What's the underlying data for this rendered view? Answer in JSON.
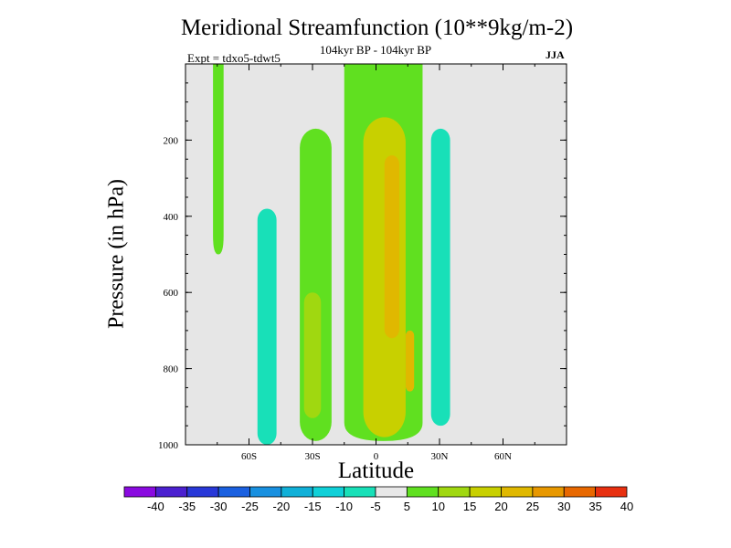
{
  "chart_data": {
    "type": "contour",
    "title": "Meridional Streamfunction (10**9kg/m-2)",
    "subtitle": "104kyr BP - 104kyr BP",
    "experiment": "Expt = tdxo5-tdwt5",
    "season": "JJA",
    "xlabel": "Latitude",
    "ylabel": "Pressure (in hPa)",
    "xlim": [
      -90,
      90
    ],
    "ylim": [
      1000,
      0
    ],
    "x_ticks": [
      {
        "value": -60,
        "label": "60S"
      },
      {
        "value": -30,
        "label": "30S"
      },
      {
        "value": 0,
        "label": "0"
      },
      {
        "value": 30,
        "label": "30N"
      },
      {
        "value": 60,
        "label": "60N"
      }
    ],
    "y_ticks": [
      {
        "value": 200,
        "label": "200"
      },
      {
        "value": 400,
        "label": "400"
      },
      {
        "value": 600,
        "label": "600"
      },
      {
        "value": 800,
        "label": "800"
      },
      {
        "value": 1000,
        "label": "1000"
      }
    ],
    "background_color": "#e6e6e6",
    "colorbar": {
      "labels": [
        "-40",
        "-35",
        "-30",
        "-25",
        "-20",
        "-15",
        "-10",
        "-5",
        "5",
        "10",
        "15",
        "20",
        "25",
        "30",
        "35",
        "40"
      ],
      "colors": [
        "#8a0ae0",
        "#4b20d0",
        "#2838d8",
        "#1a60e0",
        "#1890e0",
        "#10b0d8",
        "#10d0d8",
        "#18e0b8",
        "#e8e8e8",
        "#60e020",
        "#a0d810",
        "#c8d000",
        "#e0b800",
        "#e89800",
        "#e86800",
        "#e83010"
      ]
    },
    "regions": [
      {
        "name": "nh-upper-level-cell",
        "level": "5",
        "color": "#60e020",
        "pressure_range": [
          0,
          500
        ],
        "lat_range": [
          -77,
          -72
        ]
      },
      {
        "name": "sh-mid-latitude-negative-cell",
        "level": "-5",
        "color": "#18e0b8",
        "pressure_range": [
          380,
          1000
        ],
        "lat_range": [
          -56,
          -47
        ]
      },
      {
        "name": "sh-subtropical-positive-cell",
        "level": "5",
        "color": "#60e020",
        "pressure_range": [
          170,
          990
        ],
        "lat_range": [
          -36,
          -21
        ]
      },
      {
        "name": "sh-subtropical-core",
        "level": "10",
        "color": "#a0d810",
        "pressure_range": [
          600,
          930
        ],
        "lat_range": [
          -34,
          -26
        ]
      },
      {
        "name": "tropical-positive-cell",
        "level": "5",
        "color": "#60e020",
        "pressure_range": [
          0,
          990
        ],
        "lat_range": [
          -15,
          22
        ]
      },
      {
        "name": "tropical-inner-core",
        "level": "15",
        "color": "#c8d000",
        "pressure_range": [
          140,
          980
        ],
        "lat_range": [
          -6,
          14
        ]
      },
      {
        "name": "tropical-upper-maximum",
        "level": "25",
        "color": "#e0b800",
        "pressure_range": [
          240,
          720
        ],
        "lat_range": [
          4,
          11
        ]
      },
      {
        "name": "tropical-lower-maximum",
        "level": "25",
        "color": "#e0b800",
        "pressure_range": [
          700,
          860
        ],
        "lat_range": [
          14,
          18
        ]
      },
      {
        "name": "nh-subtropical-negative-cell",
        "level": "-5",
        "color": "#18e0b8",
        "pressure_range": [
          170,
          950
        ],
        "lat_range": [
          26,
          35
        ]
      }
    ]
  }
}
